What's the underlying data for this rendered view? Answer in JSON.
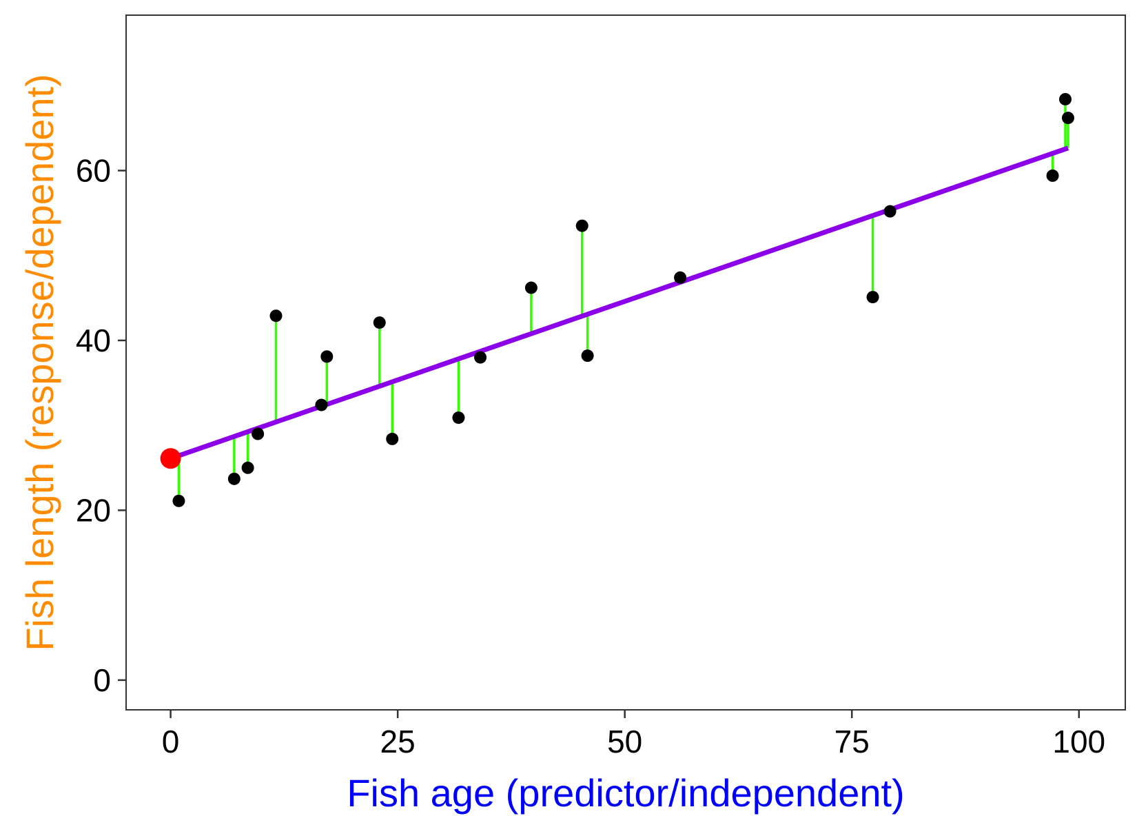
{
  "chart_data": {
    "type": "scatter",
    "xlabel": "Fish age (predictor/independent)",
    "ylabel": "Fish length (response/dependent)",
    "xlim": [
      -4.9,
      105.1
    ],
    "ylim": [
      -3.5,
      78.3
    ],
    "x_ticks": [
      0,
      25,
      50,
      75,
      100
    ],
    "y_ticks": [
      0,
      20,
      40,
      60
    ],
    "grid": false,
    "legend": "none",
    "colors": {
      "points": "#000000",
      "fit_line": "#8B00E8",
      "residuals": "#33FF00",
      "intercept_point": "#FF0000",
      "xlabel": "#0000FF",
      "ylabel": "#FF8C00",
      "panel_border": "#333333"
    },
    "regression_line": {
      "intercept": 26.1,
      "slope": 0.37,
      "x_range": [
        0,
        98.8
      ]
    },
    "intercept_point": {
      "x": 0,
      "y": 26.1
    },
    "points": [
      {
        "x": 0.9,
        "y": 21.1
      },
      {
        "x": 7.0,
        "y": 23.7
      },
      {
        "x": 8.5,
        "y": 25.0
      },
      {
        "x": 9.6,
        "y": 29.0
      },
      {
        "x": 11.6,
        "y": 42.9
      },
      {
        "x": 16.6,
        "y": 32.4
      },
      {
        "x": 17.2,
        "y": 38.1
      },
      {
        "x": 23.0,
        "y": 42.1
      },
      {
        "x": 24.4,
        "y": 28.4
      },
      {
        "x": 31.7,
        "y": 30.9
      },
      {
        "x": 34.1,
        "y": 38.0
      },
      {
        "x": 39.7,
        "y": 46.2
      },
      {
        "x": 45.3,
        "y": 53.5
      },
      {
        "x": 45.9,
        "y": 38.2
      },
      {
        "x": 56.1,
        "y": 47.4
      },
      {
        "x": 77.3,
        "y": 45.1
      },
      {
        "x": 79.2,
        "y": 55.2
      },
      {
        "x": 97.1,
        "y": 59.4
      },
      {
        "x": 98.5,
        "y": 68.4
      },
      {
        "x": 98.8,
        "y": 66.2
      }
    ]
  }
}
